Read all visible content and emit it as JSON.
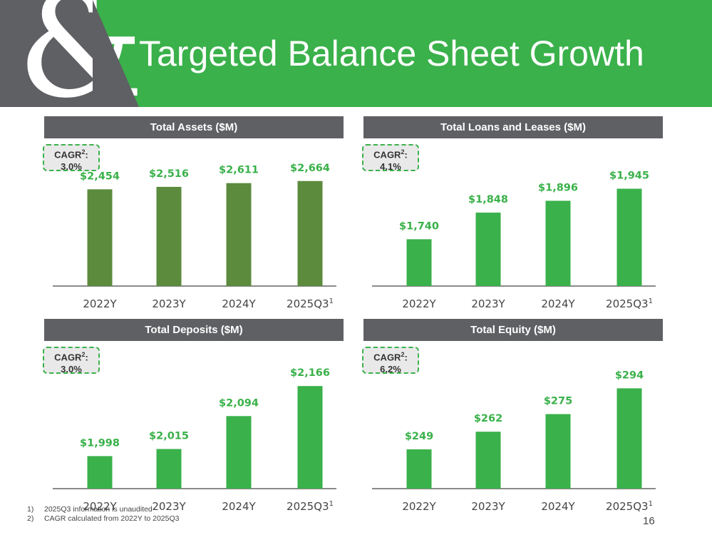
{
  "title": "Targeted Balance Sheet Growth",
  "page_number": "16",
  "colors": {
    "accent": "#3ab14a",
    "dark_bar": "#5c8b3e",
    "gray": "#5f6064"
  },
  "footnotes": [
    {
      "num": "1)",
      "text": "2025Q3 information is unaudited"
    },
    {
      "num": "2)",
      "text": "CAGR calculated from 2022Y to 2025Q3"
    }
  ],
  "chart_data": [
    {
      "type": "bar",
      "title": "Total Assets ($M)",
      "cagr_label": "CAGR",
      "cagr_sup": "2",
      "cagr_value": "3.0%",
      "categories": [
        "2022Y",
        "2023Y",
        "2024Y",
        "2025Q3"
      ],
      "category_sups": [
        "",
        "",
        "",
        "1"
      ],
      "values": [
        2454,
        2516,
        2611,
        2664
      ],
      "value_labels": [
        "$2,454",
        "$2,516",
        "$2,611",
        "$2,664"
      ],
      "bar_color": "#5c8b3e",
      "ylim": [
        0,
        2750
      ]
    },
    {
      "type": "bar",
      "title": "Total Loans and Leases ($M)",
      "cagr_label": "CAGR",
      "cagr_sup": "2",
      "cagr_value": "4.1%",
      "categories": [
        "2022Y",
        "2023Y",
        "2024Y",
        "2025Q3"
      ],
      "category_sups": [
        "",
        "",
        "",
        "1"
      ],
      "values": [
        1740,
        1848,
        1896,
        1945
      ],
      "value_labels": [
        "$1,740",
        "$1,848",
        "$1,896",
        "$1,945"
      ],
      "bar_color": "#3ab14a",
      "ylim": [
        1550,
        1990
      ]
    },
    {
      "type": "bar",
      "title": "Total Deposits ($M)",
      "cagr_label": "CAGR",
      "cagr_sup": "2",
      "cagr_value": "3.0%",
      "categories": [
        "2022Y",
        "2023Y",
        "2024Y",
        "2025Q3"
      ],
      "category_sups": [
        "",
        "",
        "",
        "1"
      ],
      "values": [
        1998,
        2015,
        2094,
        2166
      ],
      "value_labels": [
        "$1,998",
        "$2,015",
        "$2,094",
        "$2,166"
      ],
      "bar_color": "#3ab14a",
      "ylim": [
        1920,
        2180
      ]
    },
    {
      "type": "bar",
      "title": "Total Equity ($M)",
      "cagr_label": "CAGR",
      "cagr_sup": "2",
      "cagr_value": "6.2%",
      "categories": [
        "2022Y",
        "2023Y",
        "2024Y",
        "2025Q3"
      ],
      "category_sups": [
        "",
        "",
        "",
        "1"
      ],
      "values": [
        249,
        262,
        275,
        294
      ],
      "value_labels": [
        "$249",
        "$262",
        "$275",
        "$294"
      ],
      "bar_color": "#3ab14a",
      "ylim": [
        220,
        300
      ]
    }
  ]
}
